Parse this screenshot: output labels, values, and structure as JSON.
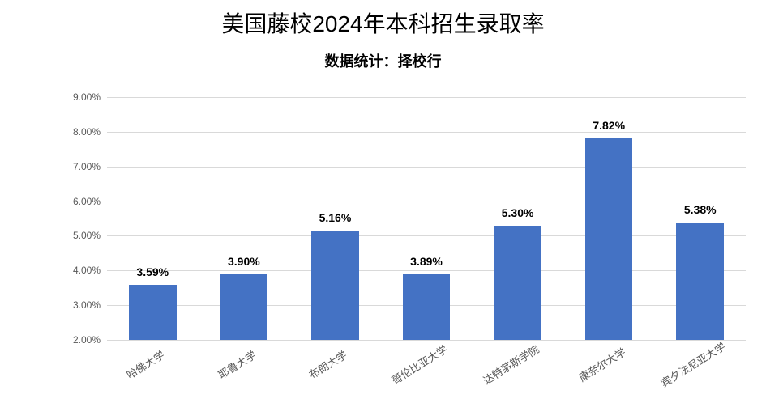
{
  "chart": {
    "type": "bar",
    "title": "美国藤校2024年本科招生录取率",
    "subtitle": "数据统计：择校行",
    "title_fontsize": 28,
    "subtitle_fontsize": 18,
    "categories": [
      "哈佛大学",
      "耶鲁大学",
      "布朗大学",
      "哥伦比亚大学",
      "达特茅斯学院",
      "康奈尔大学",
      "宾夕法尼亚大学"
    ],
    "values": [
      3.59,
      3.9,
      5.16,
      3.89,
      5.3,
      7.82,
      5.38
    ],
    "value_labels": [
      "3.59%",
      "3.90%",
      "5.16%",
      "3.89%",
      "5.30%",
      "7.82%",
      "5.38%"
    ],
    "bar_color": "#4472c4",
    "background_color": "#ffffff",
    "grid_color": "#d9d9d9",
    "axis_label_color": "#595959",
    "data_label_color": "#000000",
    "ylim": [
      2.0,
      9.0
    ],
    "ytick_step": 1.0,
    "yticks": [
      "2.00%",
      "3.00%",
      "4.00%",
      "5.00%",
      "6.00%",
      "7.00%",
      "8.00%",
      "9.00%"
    ],
    "bar_width_ratio": 0.52,
    "x_label_fontsize": 13,
    "y_label_fontsize": 12,
    "data_label_fontsize": 14,
    "x_label_rotation": -32
  }
}
